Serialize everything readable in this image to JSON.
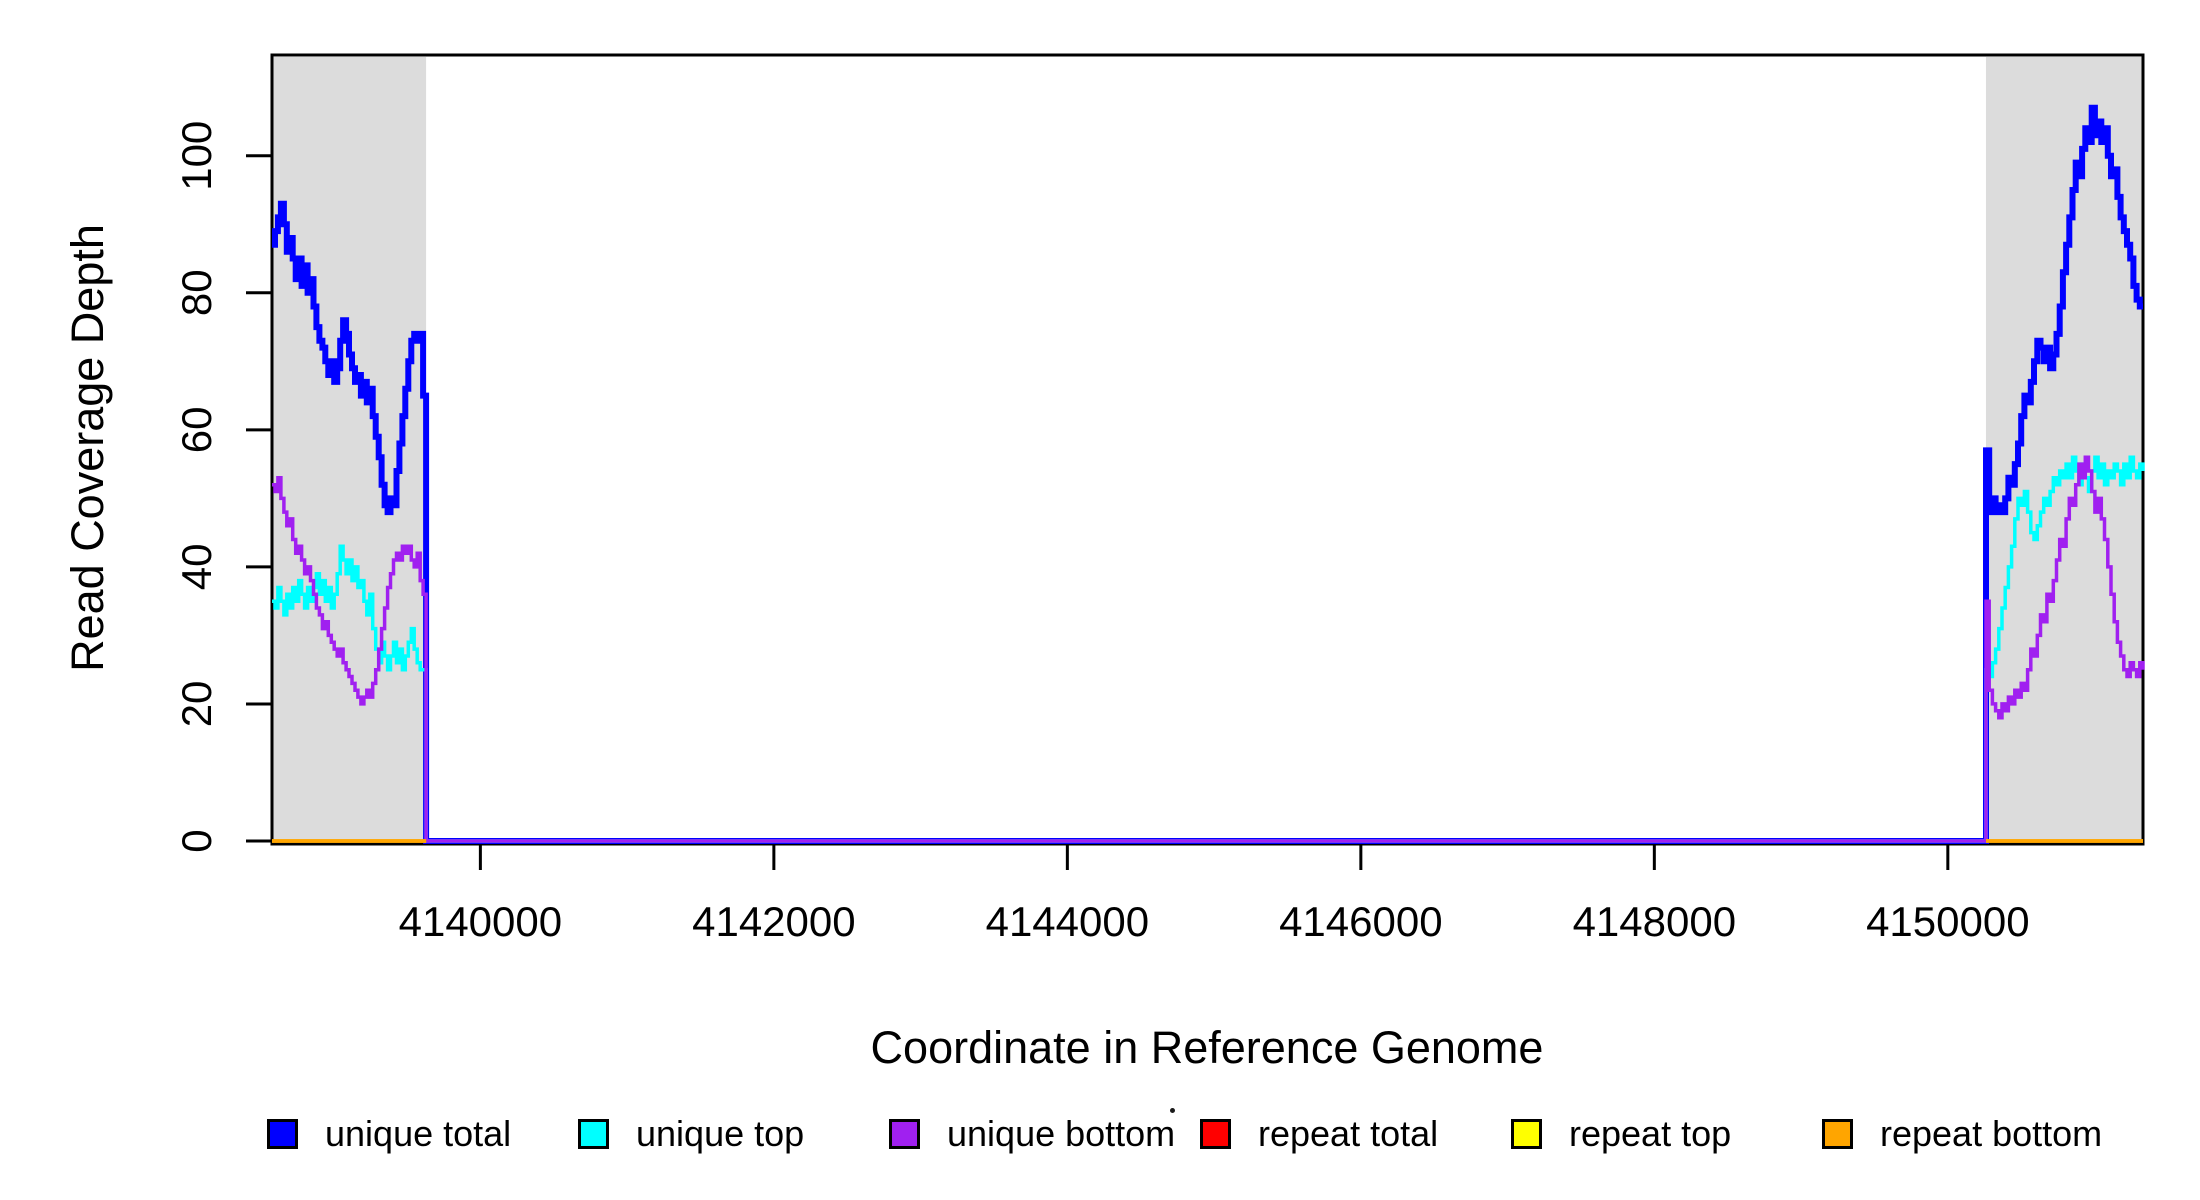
{
  "figure": {
    "xlabel": "Coordinate in Reference Genome",
    "ylabel": "Read Coverage Depth"
  },
  "legend": {
    "items": [
      {
        "label": "unique total",
        "color": "#0000FF"
      },
      {
        "label": "unique top",
        "color": "#00FFFF"
      },
      {
        "label": "unique bottom",
        "color": "#A020F0"
      },
      {
        "label": "repeat total",
        "color": "#FF0000"
      },
      {
        "label": "repeat top",
        "color": "#FFFF00"
      },
      {
        "label": "repeat bottom",
        "color": "#FFA500"
      }
    ]
  },
  "chart_data": {
    "type": "line",
    "step": true,
    "title": "",
    "xlabel": "Coordinate in Reference Genome",
    "ylabel": "Read Coverage Depth",
    "xlim": [
      4138580,
      4151330
    ],
    "ylim": [
      0,
      114.7
    ],
    "x_ticks": [
      4140000,
      4142000,
      4144000,
      4146000,
      4148000,
      4150000
    ],
    "y_ticks": [
      0,
      20,
      40,
      60,
      80,
      100
    ],
    "grid": false,
    "legend_position": "bottom",
    "shaded_regions": [
      {
        "x0": 4138580,
        "x1": 4139630,
        "color": "#DCDCDC"
      },
      {
        "x0": 4150260,
        "x1": 4151330,
        "color": "#DCDCDC"
      }
    ],
    "series": [
      {
        "name": "unique total",
        "color": "#0000FF",
        "line_width": 6,
        "segments": [
          {
            "x0": 4138580,
            "x1": 4139630,
            "values": [
              87,
              89,
              91,
              93,
              90,
              86,
              88,
              85,
              82,
              85,
              81,
              84,
              80,
              82,
              78,
              75,
              73,
              72,
              70,
              68,
              70,
              67,
              69,
              73,
              76,
              74,
              71,
              69,
              67,
              68,
              65,
              67,
              64,
              66,
              62,
              59,
              56,
              52,
              49,
              48,
              50,
              49,
              54,
              58,
              62,
              66,
              70,
              73,
              74,
              73,
              74,
              65,
              0
            ]
          },
          {
            "x0": 4139630,
            "x1": 4150260,
            "values": [
              0,
              0
            ]
          },
          {
            "x0": 4150260,
            "x1": 4151330,
            "values": [
              57,
              48,
              50,
              48,
              49,
              48,
              50,
              53,
              52,
              55,
              58,
              62,
              65,
              64,
              67,
              70,
              73,
              72,
              70,
              72,
              69,
              71,
              74,
              78,
              83,
              87,
              91,
              95,
              99,
              97,
              101,
              104,
              102,
              107,
              103,
              105,
              102,
              104,
              100,
              97,
              98,
              94,
              91,
              89,
              87,
              85,
              81,
              79,
              78,
              78
            ]
          }
        ]
      },
      {
        "name": "unique top",
        "color": "#00FFFF",
        "line_width": 3.5,
        "segments": [
          {
            "x0": 4138580,
            "x1": 4139630,
            "values": [
              35,
              34,
              37,
              35,
              33,
              36,
              34,
              37,
              35,
              38,
              36,
              34,
              37,
              35,
              37,
              39,
              36,
              38,
              35,
              37,
              34,
              36,
              39,
              43,
              41,
              39,
              41,
              38,
              40,
              37,
              38,
              35,
              33,
              36,
              31,
              28,
              26,
              29,
              27,
              25,
              27,
              29,
              26,
              28,
              25,
              27,
              29,
              31,
              28,
              26,
              25,
              25,
              0
            ]
          },
          {
            "x0": 4139630,
            "x1": 4150260,
            "values": [
              0,
              0
            ]
          },
          {
            "x0": 4150260,
            "x1": 4151330,
            "values": [
              25,
              24,
              26,
              28,
              31,
              34,
              37,
              40,
              43,
              47,
              50,
              49,
              51,
              48,
              45,
              44,
              46,
              48,
              50,
              49,
              51,
              53,
              52,
              54,
              53,
              55,
              53,
              56,
              54,
              52,
              55,
              53,
              51,
              54,
              56,
              53,
              55,
              52,
              54,
              53,
              55,
              54,
              52,
              55,
              53,
              56,
              54,
              53,
              55,
              54
            ]
          }
        ]
      },
      {
        "name": "unique bottom",
        "color": "#A020F0",
        "line_width": 3.5,
        "segments": [
          {
            "x0": 4138580,
            "x1": 4139630,
            "values": [
              52,
              51,
              53,
              50,
              48,
              46,
              47,
              44,
              42,
              43,
              41,
              39,
              40,
              38,
              36,
              34,
              33,
              31,
              32,
              30,
              29,
              28,
              27,
              28,
              26,
              25,
              24,
              23,
              22,
              21,
              20,
              21,
              22,
              21,
              23,
              25,
              28,
              31,
              34,
              37,
              39,
              41,
              42,
              41,
              43,
              42,
              43,
              41,
              40,
              42,
              38,
              36,
              0
            ]
          },
          {
            "x0": 4139630,
            "x1": 4150260,
            "values": [
              0,
              0
            ]
          },
          {
            "x0": 4150260,
            "x1": 4151330,
            "values": [
              35,
              22,
              20,
              19,
              18,
              20,
              19,
              21,
              20,
              22,
              21,
              23,
              22,
              25,
              28,
              27,
              30,
              33,
              32,
              36,
              35,
              38,
              41,
              44,
              43,
              47,
              50,
              49,
              52,
              55,
              53,
              56,
              54,
              51,
              48,
              50,
              47,
              44,
              40,
              36,
              32,
              29,
              27,
              25,
              24,
              26,
              25,
              24,
              26,
              25
            ]
          }
        ]
      },
      {
        "name": "repeat total",
        "color": "#FF0000",
        "line_width": 3.5,
        "segments": [
          {
            "x0": 4138580,
            "x1": 4139630,
            "values": [
              0,
              0
            ]
          },
          {
            "x0": 4150260,
            "x1": 4151330,
            "values": [
              0,
              0
            ]
          }
        ]
      },
      {
        "name": "repeat top",
        "color": "#FFFF00",
        "line_width": 3.5,
        "segments": [
          {
            "x0": 4138580,
            "x1": 4139630,
            "values": [
              0,
              0
            ]
          },
          {
            "x0": 4150260,
            "x1": 4151330,
            "values": [
              0,
              0
            ]
          }
        ]
      },
      {
        "name": "repeat bottom",
        "color": "#FFA500",
        "line_width": 3.5,
        "segments": [
          {
            "x0": 4138580,
            "x1": 4139630,
            "values": [
              0,
              0
            ]
          },
          {
            "x0": 4150260,
            "x1": 4151330,
            "values": [
              0,
              0
            ]
          }
        ]
      }
    ]
  }
}
